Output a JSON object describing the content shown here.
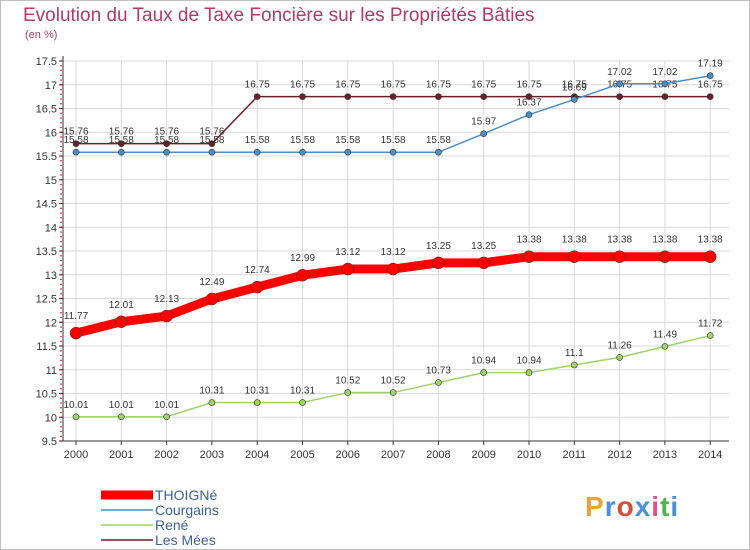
{
  "title": "Evolution du Taux de Taxe Foncière sur les Propriétés Bâties",
  "unit": "(en %)",
  "logo": {
    "text": "Proxiti",
    "colors": [
      "#e8a33a",
      "#4c8fd8",
      "#d84c3a",
      "#4c8fd8",
      "#e84c8a",
      "#4cb84c",
      "#4c8fd8"
    ]
  },
  "chart_data": {
    "type": "line",
    "title": "Evolution du Taux de Taxe Foncière sur les Propriétés Bâties",
    "ylabel": "(en %)",
    "xlabel": "",
    "x": [
      "2000",
      "2001",
      "2002",
      "2003",
      "2004",
      "2005",
      "2006",
      "2007",
      "2008",
      "2009",
      "2010",
      "2011",
      "2012",
      "2013",
      "2014"
    ],
    "ylim": [
      9.5,
      17.5
    ],
    "yticks": [
      "9.5",
      "10",
      "10.5",
      "11",
      "11.5",
      "12",
      "12.5",
      "13",
      "13.5",
      "14",
      "14.5",
      "15",
      "15.5",
      "16",
      "16.5",
      "17",
      "17.5"
    ],
    "grid": true,
    "legend_position": "bottom-left",
    "series": [
      {
        "name": "Les Mées",
        "color": "#6b1f26",
        "width": 1.5,
        "marker": 3,
        "values": [
          15.76,
          15.76,
          15.76,
          15.76,
          16.75,
          16.75,
          16.75,
          16.75,
          16.75,
          16.75,
          16.75,
          16.75,
          16.75,
          16.75,
          16.75
        ],
        "labels": [
          "15.76",
          "15.76",
          "15.76",
          "15.76",
          "16.75",
          "16.75",
          "16.75",
          "16.75",
          "16.75",
          "16.75",
          "16.75",
          "16.75",
          "16.75",
          "16.75",
          "16.75"
        ]
      },
      {
        "name": "Courgains",
        "color": "#4a8fc8",
        "width": 1.5,
        "marker": 3,
        "values": [
          15.58,
          15.58,
          15.58,
          15.58,
          15.58,
          15.58,
          15.58,
          15.58,
          15.58,
          15.97,
          16.37,
          16.69,
          17.02,
          17.02,
          17.19
        ],
        "labels": [
          "15.58",
          "15.58",
          "15.58",
          "15.58",
          "15.58",
          "15.58",
          "15.58",
          "15.58",
          "15.58",
          "15.97",
          "16.37",
          "16.69",
          "17.02",
          "17.02",
          "17.19"
        ]
      },
      {
        "name": "René",
        "color": "#9ed36a",
        "width": 1.5,
        "marker": 3,
        "values": [
          10.01,
          10.01,
          10.01,
          10.31,
          10.31,
          10.31,
          10.52,
          10.52,
          10.73,
          10.94,
          10.94,
          11.1,
          11.26,
          11.49,
          11.72
        ],
        "labels": [
          "10.01",
          "10.01",
          "10.01",
          "10.31",
          "10.31",
          "10.31",
          "10.52",
          "10.52",
          "10.73",
          "10.94",
          "10.94",
          "11.1",
          "11.26",
          "11.49",
          "11.72"
        ]
      },
      {
        "name": "THOIGNé",
        "color": "#ff0000",
        "width": 9,
        "marker": 6,
        "values": [
          11.77,
          12.01,
          12.13,
          12.49,
          12.74,
          12.99,
          13.12,
          13.12,
          13.25,
          13.25,
          13.38,
          13.38,
          13.38,
          13.38,
          13.38
        ],
        "labels": [
          "11.77",
          "12.01",
          "12.13",
          "12.49",
          "12.74",
          "12.99",
          "13.12",
          "13.12",
          "13.25",
          "13.25",
          "13.38",
          "13.38",
          "13.38",
          "13.38",
          "13.38"
        ]
      }
    ],
    "legend_order": [
      "THOIGNé",
      "Courgains",
      "René",
      "Les Mées"
    ]
  }
}
